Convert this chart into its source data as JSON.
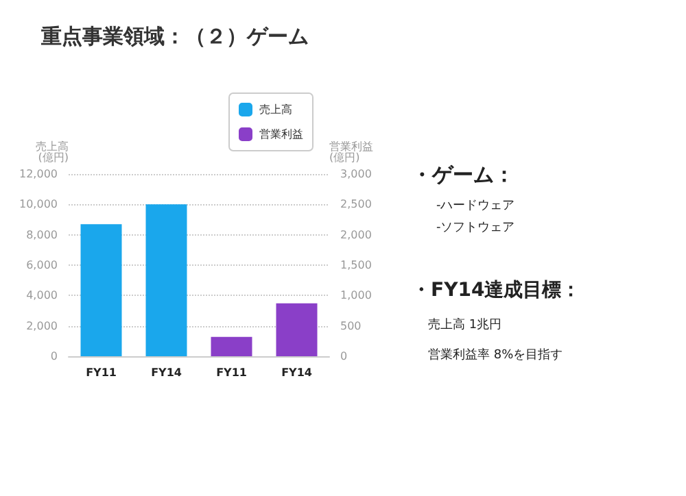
{
  "chart_data": {
    "type": "bar",
    "title": "重点事業領域：（２）ゲーム",
    "categories": [
      "FY11",
      "FY14",
      "FY11",
      "FY14"
    ],
    "series": [
      {
        "name": "売上高",
        "color": "#1aa7ec",
        "values": [
          8700,
          10000,
          null,
          null
        ]
      },
      {
        "name": "営業利益",
        "color": "#8a3fc8",
        "axis": "y2",
        "values": [
          null,
          null,
          320,
          870
        ]
      }
    ],
    "ylabel": "売上高\n(億円)",
    "y2label": "営業利益\n(億円)",
    "ylim": [
      0,
      12000
    ],
    "yticks": [
      0,
      {
        "value": 2000,
        "label": "2,000"
      },
      {
        "value": 4000,
        "label": "4,000"
      },
      {
        "value": 6000,
        "label": "6,000"
      },
      {
        "value": 8000,
        "label": "8,000"
      },
      {
        "value": 10000,
        "label": "10,000"
      },
      {
        "value": 12000,
        "label": "12,000"
      }
    ],
    "y2lim": [
      0,
      3000
    ],
    "y2ticks": [
      0,
      500,
      {
        "value": 1000,
        "label": "1,000"
      },
      {
        "value": 1500,
        "label": "1,500"
      },
      {
        "value": 2000,
        "label": "2,000"
      },
      {
        "value": 2500,
        "label": "2,500"
      },
      {
        "value": 3000,
        "label": "3,000"
      }
    ],
    "grid": "y",
    "legend": "top right",
    "annotations": [
      "・ゲーム：",
      "-ハードウェア",
      "-ソフトウェア",
      "・FY14達成目標：",
      "売上高 1兆円",
      "営業利益率 8%を目指す"
    ]
  }
}
